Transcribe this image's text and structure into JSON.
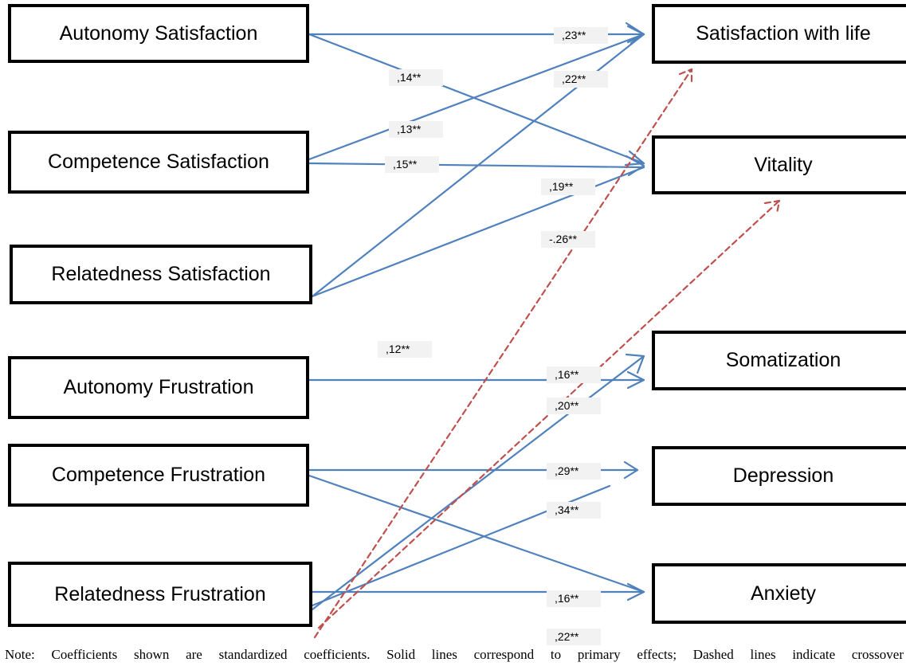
{
  "predictors": {
    "autonomy_satisfaction": "Autonomy Satisfaction",
    "competence_satisfaction": "Competence Satisfaction",
    "relatedness_satisfaction": "Relatedness Satisfaction",
    "autonomy_frustration": "Autonomy Frustration",
    "competence_frustration": "Competence Frustration",
    "relatedness_frustration": "Relatedness Frustration"
  },
  "outcomes": {
    "satisfaction_with_life": "Satisfaction with life",
    "vitality": "Vitality",
    "somatization": "Somatization",
    "depression": "Depression",
    "anxiety": "Anxiety"
  },
  "coefficients": {
    "c23": ",23**",
    "c14": ",14**",
    "c22a": ",22**",
    "c13": ",13**",
    "c15": ",15**",
    "c19": ",19**",
    "cneg26": "-.26**",
    "c12": ",12**",
    "c16a": ",16**",
    "c20": ",20**",
    "c29": ",29**",
    "c34": ",34**",
    "c16b": ",16**",
    "c22b": ",22**"
  },
  "note": "Note: Coefficients shown are standardized coefficients. Solid lines correspond to primary effects; Dashed lines indicate crossover",
  "colors": {
    "solid_path": "#4f81bd",
    "dashed_path": "#c0504d",
    "box_border": "#000000",
    "label_bg": "#f2f2f2"
  }
}
